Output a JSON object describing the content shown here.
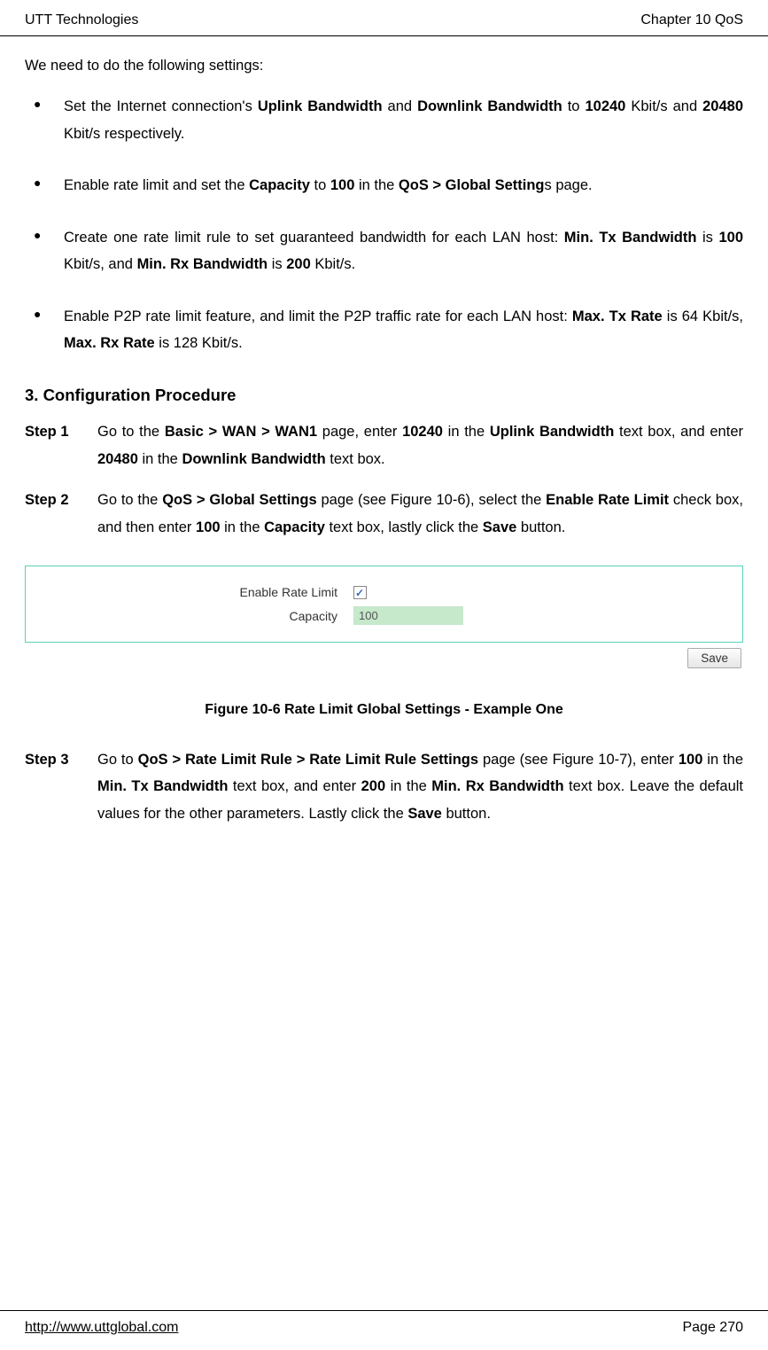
{
  "header": {
    "left": "UTT Technologies",
    "right": "Chapter 10 QoS"
  },
  "intro": "We need to do the following settings:",
  "bullets": [
    {
      "pre": "Set the Internet connection's ",
      "b1": "Uplink Bandwidth",
      "mid1": " and ",
      "b2": "Downlink Bandwidth",
      "mid2": " to ",
      "b3": "10240",
      "mid3": " Kbit/s and ",
      "b4": "20480",
      "post": " Kbit/s respectively."
    },
    {
      "pre": "Enable rate limit and set the ",
      "b1": "Capacity",
      "mid1": " to ",
      "b2": "100",
      "mid2": " in the ",
      "b3": "QoS > Global Setting",
      "post": "s page."
    },
    {
      "pre": "Create one rate limit rule to set guaranteed bandwidth for each LAN host: ",
      "b1": "Min. Tx Bandwidth",
      "mid1": " is ",
      "b2": "100",
      "mid2": " Kbit/s, and ",
      "b3": "Min. Rx Bandwidth",
      "mid3": " is ",
      "b4": "200",
      "post": " Kbit/s."
    },
    {
      "pre": "Enable P2P rate limit feature, and limit the P2P traffic rate for each LAN host: ",
      "b1": "Max. Tx Rate",
      "mid1": " is 64 Kbit/s, ",
      "b2": "Max. Rx Rate",
      "post": " is 128 Kbit/s."
    }
  ],
  "section_title": "3.   Configuration Procedure",
  "steps": [
    {
      "label": "Step 1",
      "t1": "Go to the ",
      "b1": "Basic > WAN > WAN1",
      "t2": " page, enter ",
      "b2": "10240",
      "t3": " in the ",
      "b3": "Uplink Bandwidth",
      "t4": " text box, and enter ",
      "b4": "20480",
      "t5": " in the ",
      "b5": "Downlink Bandwidth",
      "t6": " text box."
    },
    {
      "label": "Step 2",
      "t1": "Go to the ",
      "b1": "QoS > Global Settings",
      "t2": " page (see Figure 10-6), select the ",
      "b2": "Enable Rate Limit",
      "t3": " check box, and then enter ",
      "b3": "100",
      "t4": " in the ",
      "b4": "Capacity",
      "t5": " text box, lastly click the ",
      "b5": "Save",
      "t6": " button."
    },
    {
      "label": "Step 3",
      "t1": "Go to ",
      "b1": "QoS > Rate Limit Rule > Rate Limit Rule Settings",
      "t2": " page (see Figure 10-7), enter ",
      "b2": "100",
      "t3": " in the ",
      "b3": "Min. Tx Bandwidth",
      "t4": " text box, and enter ",
      "b4": "200",
      "t5": " in the ",
      "b5": "Min. Rx Bandwidth",
      "t6": " text box. Leave the default values for the other parameters. Lastly click the ",
      "b6": "Save",
      "t7": " button."
    }
  ],
  "figure": {
    "label_rate": "Enable Rate Limit",
    "label_capacity": "Capacity",
    "capacity_value": "100",
    "save_button": "Save",
    "caption": "Figure 10-6 Rate Limit Global Settings - Example One",
    "border_color": "#5ad0b8",
    "input_bg": "#c6e8cb"
  },
  "footer": {
    "url": "http://www.uttglobal.com",
    "page": "Page 270"
  }
}
